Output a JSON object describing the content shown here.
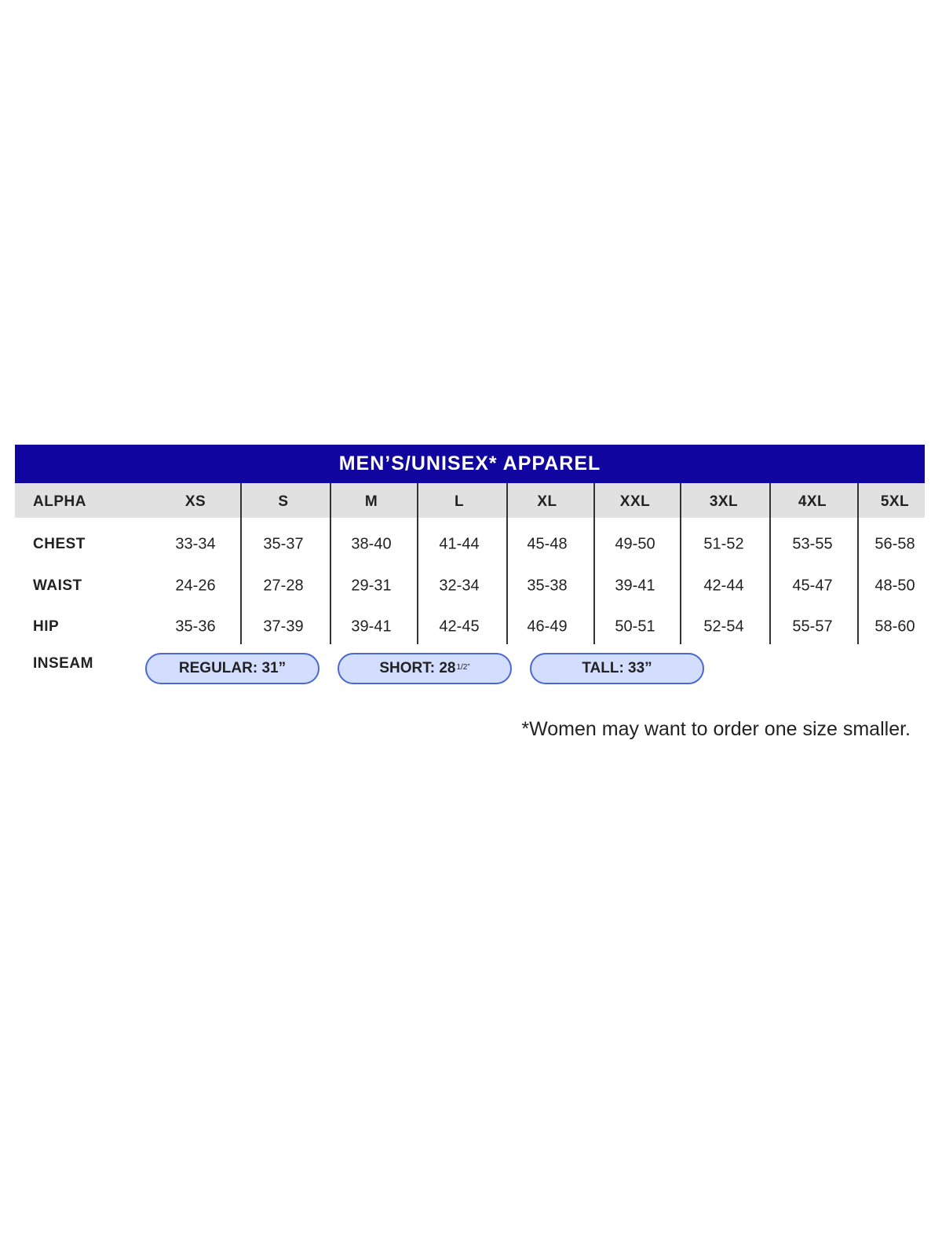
{
  "title": "MEN’S/UNISEX* APPAREL",
  "colors": {
    "banner": "#10069f",
    "header_row": "#e1e1e1",
    "pill_fill": "#d3ddfd",
    "pill_border": "#4a68cf"
  },
  "table": {
    "header_label": "ALPHA",
    "sizes": [
      "XS",
      "S",
      "M",
      "L",
      "XL",
      "XXL",
      "3XL",
      "4XL",
      "5XL"
    ],
    "rows": [
      {
        "label": "CHEST",
        "values": [
          "33-34",
          "35-37",
          "38-40",
          "41-44",
          "45-48",
          "49-50",
          "51-52",
          "53-55",
          "56-58"
        ]
      },
      {
        "label": "WAIST",
        "values": [
          "24-26",
          "27-28",
          "29-31",
          "32-34",
          "35-38",
          "39-41",
          "42-44",
          "45-47",
          "48-50"
        ]
      },
      {
        "label": "HIP",
        "values": [
          "35-36",
          "37-39",
          "39-41",
          "42-45",
          "46-49",
          "50-51",
          "52-54",
          "55-57",
          "58-60"
        ]
      }
    ]
  },
  "inseam": {
    "label": "INSEAM",
    "options": [
      {
        "text": "REGULAR: 31”",
        "sup": ""
      },
      {
        "text": "SHORT: 28",
        "sup": "1/2”"
      },
      {
        "text": "TALL: 33”",
        "sup": ""
      }
    ]
  },
  "footnote": "*Women may want to order one size smaller."
}
